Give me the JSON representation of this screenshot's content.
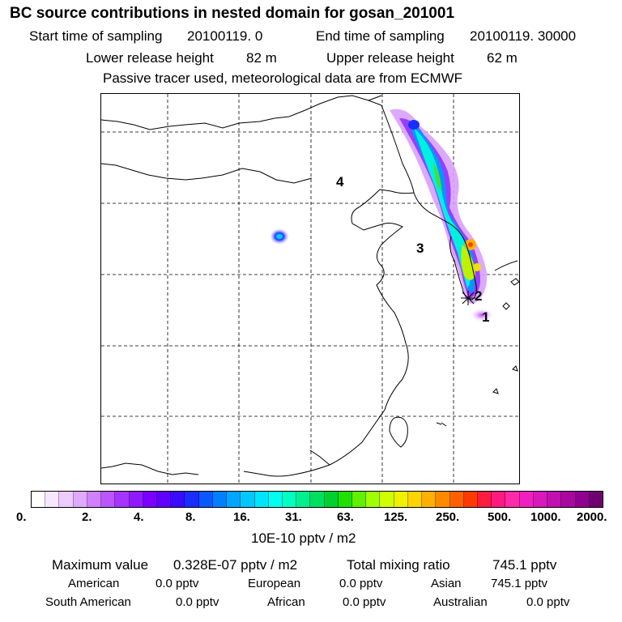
{
  "header": {
    "title": "BC  source contributions in nested domain for gosan_201001",
    "start_label": "Start time of sampling",
    "start_value": "20100119.     0",
    "end_label": "End time of sampling",
    "end_value": "20100119. 30000",
    "lower_label": "Lower release height",
    "lower_value": "82 m",
    "upper_label": "Upper release height",
    "upper_value": "62 m",
    "tracer_note": "Passive tracer used, meteorological data are from ECMWF"
  },
  "map": {
    "region_labels": [
      "1",
      "2",
      "3",
      "4"
    ]
  },
  "colorbar": {
    "ticks": [
      "0.",
      "2.",
      "4.",
      "8.",
      "16.",
      "31.",
      "63.",
      "125.",
      "250.",
      "500.",
      "1000.",
      "2000."
    ],
    "colors": [
      "#ffffff",
      "#f7e6ff",
      "#eecbff",
      "#e0a8ff",
      "#cf80ff",
      "#bb55ff",
      "#a633ff",
      "#8f1aff",
      "#7a00ff",
      "#6000ff",
      "#3a0aff",
      "#1a2dff",
      "#0b58ff",
      "#0080ff",
      "#00a6ff",
      "#00c8ff",
      "#00e4ff",
      "#00ffee",
      "#00ffc0",
      "#00f090",
      "#00e060",
      "#00d030",
      "#20e000",
      "#60f000",
      "#a0ff00",
      "#d0ff00",
      "#f0f000",
      "#ffd400",
      "#ffb000",
      "#ff8a00",
      "#ff6000",
      "#ff3a00",
      "#ff1a40",
      "#ff1a80",
      "#ff2aa8",
      "#f020c0",
      "#d818b8",
      "#c010b0",
      "#a808a0",
      "#900090",
      "#700070"
    ],
    "unit_label": "10E-10 pptv / m2"
  },
  "summary": {
    "max_label": "Maximum value",
    "max_value": "0.328E-07 pptv / m2",
    "total_label": "Total mixing ratio",
    "total_value": "745.1 pptv",
    "sources": [
      {
        "name": "American",
        "value": "0.0 pptv"
      },
      {
        "name": "European",
        "value": "0.0 pptv"
      },
      {
        "name": "Asian",
        "value": "745.1 pptv"
      },
      {
        "name": "South American",
        "value": "0.0 pptv"
      },
      {
        "name": "African",
        "value": "0.0 pptv"
      },
      {
        "name": "Australian",
        "value": "0.0 pptv"
      }
    ]
  }
}
